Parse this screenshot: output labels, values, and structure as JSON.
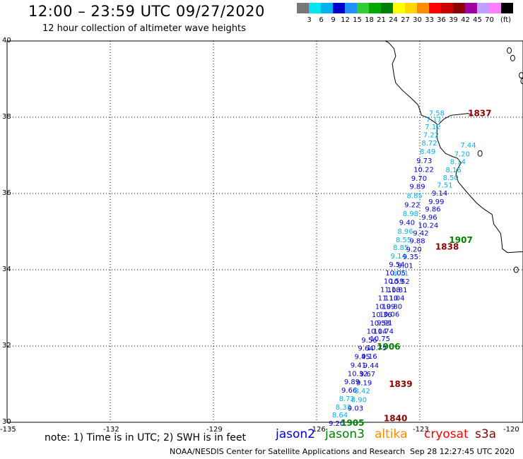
{
  "header": {
    "title": "12:00 – 23:59 UTC 09/27/2020",
    "subtitle": "12 hour collection of altimeter wave heights"
  },
  "color_scale": {
    "unit": "(ft)",
    "bins": [
      {
        "label": "",
        "color": "#777777"
      },
      {
        "label": "3",
        "color": "#00e5ee"
      },
      {
        "label": "6",
        "color": "#00b2ee"
      },
      {
        "label": "9",
        "color": "#0000cd"
      },
      {
        "label": "12",
        "color": "#1e90ff"
      },
      {
        "label": "15",
        "color": "#32cd32"
      },
      {
        "label": "18",
        "color": "#00a800"
      },
      {
        "label": "21",
        "color": "#008000"
      },
      {
        "label": "24",
        "color": "#ffff00"
      },
      {
        "label": "27",
        "color": "#ffd700"
      },
      {
        "label": "30",
        "color": "#ff8c00"
      },
      {
        "label": "33",
        "color": "#ff0000"
      },
      {
        "label": "36",
        "color": "#cd0000"
      },
      {
        "label": "39",
        "color": "#8b0000"
      },
      {
        "label": "42",
        "color": "#a000a0"
      },
      {
        "label": "45",
        "color": "#c0a0ff"
      },
      {
        "label": "70",
        "color": "#ff80ff"
      },
      {
        "label": "",
        "color": "#000000"
      }
    ]
  },
  "axes": {
    "lat_labels": [
      "40",
      "38",
      "36",
      "34",
      "32",
      "30"
    ],
    "lon_labels": [
      "-135",
      "-132",
      "-129",
      "-126",
      "-123",
      "-120"
    ]
  },
  "map_view": {
    "lon_min": -135,
    "lon_max": -120,
    "lat_min": 30,
    "lat_max": 40
  },
  "observations": [
    {
      "lon": -122.74,
      "lat": 38.12,
      "value": "7.58",
      "color": "#00b2ee"
    },
    {
      "lon": -122.82,
      "lat": 37.95,
      "value": "7.11",
      "color": "#00b2ee"
    },
    {
      "lon": -122.85,
      "lat": 37.76,
      "value": "7.12",
      "color": "#00b2ee"
    },
    {
      "lon": -122.9,
      "lat": 37.55,
      "value": "7.22",
      "color": "#00b2ee"
    },
    {
      "lon": -122.95,
      "lat": 37.33,
      "value": "8.72",
      "color": "#00b2ee"
    },
    {
      "lon": -123.0,
      "lat": 37.11,
      "value": "8.49",
      "color": "#00b2ee"
    },
    {
      "lon": -123.1,
      "lat": 36.87,
      "value": "9.73",
      "color": "#0000cd"
    },
    {
      "lon": -123.18,
      "lat": 36.64,
      "value": "10.22",
      "color": "#0000cd"
    },
    {
      "lon": -123.25,
      "lat": 36.41,
      "value": "9.70",
      "color": "#0000cd"
    },
    {
      "lon": -123.3,
      "lat": 36.19,
      "value": "9.89",
      "color": "#0000cd"
    },
    {
      "lon": -123.38,
      "lat": 35.95,
      "value": "8.85",
      "color": "#00b2ee"
    },
    {
      "lon": -123.45,
      "lat": 35.71,
      "value": "9.22",
      "color": "#0000cd"
    },
    {
      "lon": -123.5,
      "lat": 35.48,
      "value": "8.98",
      "color": "#00b2ee"
    },
    {
      "lon": -123.6,
      "lat": 35.25,
      "value": "9.40",
      "color": "#0000cd"
    },
    {
      "lon": -123.65,
      "lat": 35.02,
      "value": "8.96",
      "color": "#00b2ee"
    },
    {
      "lon": -123.7,
      "lat": 34.8,
      "value": "8.55",
      "color": "#00b2ee"
    },
    {
      "lon": -123.78,
      "lat": 34.59,
      "value": "8.85",
      "color": "#00b2ee"
    },
    {
      "lon": -123.85,
      "lat": 34.37,
      "value": "9.14",
      "color": "#00b2ee"
    },
    {
      "lon": -123.9,
      "lat": 34.15,
      "value": "9.54",
      "color": "#0000cd"
    },
    {
      "lon": -124.0,
      "lat": 33.93,
      "value": "10.05",
      "color": "#0000cd"
    },
    {
      "lon": -124.05,
      "lat": 33.71,
      "value": "10.59",
      "color": "#0000cd"
    },
    {
      "lon": -124.15,
      "lat": 33.49,
      "value": "11.18",
      "color": "#0000cd"
    },
    {
      "lon": -124.22,
      "lat": 33.27,
      "value": "11.10",
      "color": "#0000cd"
    },
    {
      "lon": -124.3,
      "lat": 33.05,
      "value": "10.99",
      "color": "#0000cd"
    },
    {
      "lon": -124.4,
      "lat": 32.83,
      "value": "10.36",
      "color": "#0000cd"
    },
    {
      "lon": -124.45,
      "lat": 32.61,
      "value": "10.53",
      "color": "#0000cd"
    },
    {
      "lon": -124.55,
      "lat": 32.4,
      "value": "10.14",
      "color": "#0000cd"
    },
    {
      "lon": -124.7,
      "lat": 32.17,
      "value": "9.56",
      "color": "#0000cd"
    },
    {
      "lon": -124.8,
      "lat": 31.95,
      "value": "9.64",
      "color": "#0000cd"
    },
    {
      "lon": -124.9,
      "lat": 31.73,
      "value": "9.45",
      "color": "#0000cd"
    },
    {
      "lon": -125.02,
      "lat": 31.51,
      "value": "9.41",
      "color": "#0000cd"
    },
    {
      "lon": -125.1,
      "lat": 31.29,
      "value": "10.32",
      "color": "#0000cd"
    },
    {
      "lon": -125.2,
      "lat": 31.07,
      "value": "9.89",
      "color": "#0000cd"
    },
    {
      "lon": -125.28,
      "lat": 30.85,
      "value": "9.66",
      "color": "#0000cd"
    },
    {
      "lon": -125.35,
      "lat": 30.63,
      "value": "8.72",
      "color": "#00b2ee"
    },
    {
      "lon": -125.45,
      "lat": 30.41,
      "value": "8.32",
      "color": "#00b2ee"
    },
    {
      "lon": -125.55,
      "lat": 30.2,
      "value": "8.64",
      "color": "#00b2ee"
    },
    {
      "lon": -125.65,
      "lat": 29.98,
      "value": "9.20",
      "color": "#0000cd"
    },
    {
      "lon": -121.82,
      "lat": 37.28,
      "value": "7.44",
      "color": "#00b2ee"
    },
    {
      "lon": -122.0,
      "lat": 37.05,
      "value": "7.20",
      "color": "#00b2ee"
    },
    {
      "lon": -122.12,
      "lat": 36.84,
      "value": "8.14",
      "color": "#00b2ee"
    },
    {
      "lon": -122.25,
      "lat": 36.63,
      "value": "8.16",
      "color": "#00b2ee"
    },
    {
      "lon": -122.33,
      "lat": 36.43,
      "value": "8.50",
      "color": "#00b2ee"
    },
    {
      "lon": -122.5,
      "lat": 36.23,
      "value": "7.51",
      "color": "#00b2ee"
    },
    {
      "lon": -122.65,
      "lat": 36.02,
      "value": "9.14",
      "color": "#0000cd"
    },
    {
      "lon": -122.75,
      "lat": 35.8,
      "value": "9.99",
      "color": "#0000cd"
    },
    {
      "lon": -122.85,
      "lat": 35.6,
      "value": "9.86",
      "color": "#0000cd"
    },
    {
      "lon": -122.95,
      "lat": 35.39,
      "value": "9.96",
      "color": "#0000cd"
    },
    {
      "lon": -123.05,
      "lat": 35.18,
      "value": "10.24",
      "color": "#0000cd"
    },
    {
      "lon": -123.2,
      "lat": 34.97,
      "value": "9.42",
      "color": "#0000cd"
    },
    {
      "lon": -123.3,
      "lat": 34.77,
      "value": "9.88",
      "color": "#0000cd"
    },
    {
      "lon": -123.4,
      "lat": 34.55,
      "value": "9.20",
      "color": "#0000cd"
    },
    {
      "lon": -123.5,
      "lat": 34.35,
      "value": "9.35",
      "color": "#0000cd"
    },
    {
      "lon": -123.65,
      "lat": 34.12,
      "value": "9.01",
      "color": "#0000cd"
    },
    {
      "lon": -123.78,
      "lat": 33.92,
      "value": "8.71",
      "color": "#00b2ee"
    },
    {
      "lon": -123.88,
      "lat": 33.7,
      "value": "10.52",
      "color": "#0000cd"
    },
    {
      "lon": -123.95,
      "lat": 33.48,
      "value": "10.81",
      "color": "#0000cd"
    },
    {
      "lon": -124.03,
      "lat": 33.27,
      "value": "11.04",
      "color": "#0000cd"
    },
    {
      "lon": -124.1,
      "lat": 33.05,
      "value": "10.80",
      "color": "#0000cd"
    },
    {
      "lon": -124.18,
      "lat": 32.84,
      "value": "10.06",
      "color": "#0000cd"
    },
    {
      "lon": -124.25,
      "lat": 32.62,
      "value": "9.91",
      "color": "#0000cd"
    },
    {
      "lon": -124.35,
      "lat": 32.4,
      "value": "10.74",
      "color": "#0000cd"
    },
    {
      "lon": -124.45,
      "lat": 32.2,
      "value": "10.75",
      "color": "#0000cd"
    },
    {
      "lon": -124.55,
      "lat": 31.96,
      "value": "10.75",
      "color": "#0000cd"
    },
    {
      "lon": -124.7,
      "lat": 31.74,
      "value": "9.16",
      "color": "#0000cd"
    },
    {
      "lon": -124.65,
      "lat": 31.5,
      "value": "9.44",
      "color": "#0000cd"
    },
    {
      "lon": -124.75,
      "lat": 31.28,
      "value": "9.67",
      "color": "#0000cd"
    },
    {
      "lon": -124.85,
      "lat": 31.05,
      "value": "9.19",
      "color": "#0000cd"
    },
    {
      "lon": -124.9,
      "lat": 30.83,
      "value": "8.42",
      "color": "#00b2ee"
    },
    {
      "lon": -125.0,
      "lat": 30.6,
      "value": "8.90",
      "color": "#00b2ee"
    },
    {
      "lon": -125.1,
      "lat": 30.38,
      "value": "9.03",
      "color": "#0000cd"
    }
  ],
  "time_labels": [
    {
      "lon": -121.6,
      "lat": 38.12,
      "text": "1837",
      "color": "#8b0000"
    },
    {
      "lon": -122.55,
      "lat": 34.62,
      "text": "1838",
      "color": "#8b0000"
    },
    {
      "lon": -123.9,
      "lat": 31.02,
      "text": "1839",
      "color": "#8b0000"
    },
    {
      "lon": -124.05,
      "lat": 30.12,
      "text": "1840",
      "color": "#8b0000"
    },
    {
      "lon": -122.15,
      "lat": 34.8,
      "text": "1907",
      "color": "#008000"
    },
    {
      "lon": -124.25,
      "lat": 32.0,
      "text": "1906",
      "color": "#008000"
    },
    {
      "lon": -125.3,
      "lat": 30.0,
      "text": "1905",
      "color": "#008000"
    }
  ],
  "footer": {
    "note": "note: 1) Time is in UTC; 2) SWH is in feet",
    "legend": [
      {
        "name": "jason2",
        "color": "#0000cd"
      },
      {
        "name": "jason3",
        "color": "#008000"
      },
      {
        "name": "altika",
        "color": "#ff8c00"
      },
      {
        "name": "cryosat",
        "color": "#ff0000"
      },
      {
        "name": "s3a",
        "color": "#8b0000"
      }
    ],
    "credit": "NOAA/NESDIS Center for Satellite Applications and Research",
    "timestamp": "Sep 28 12:27:45 UTC 2020"
  }
}
